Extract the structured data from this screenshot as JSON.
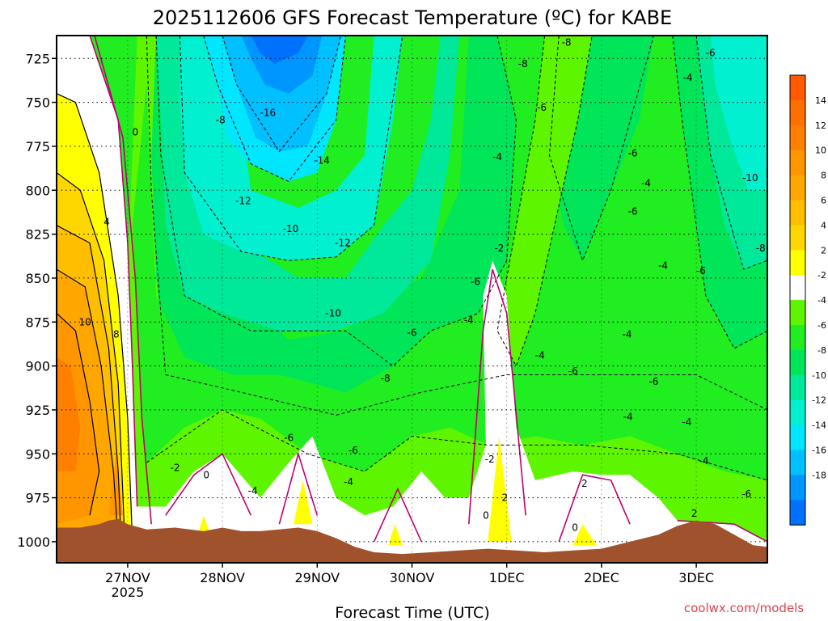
{
  "chart_data": {
    "type": "heatmap",
    "title": "2025112606 GFS Forecast Temperature (ºC) for KABE",
    "xlabel": "Forecast Time (UTC)",
    "ylabel": "",
    "x_ticks": [
      {
        "label": "27NOV",
        "sub": "2025",
        "day": 1
      },
      {
        "label": "28NOV",
        "sub": "",
        "day": 2
      },
      {
        "label": "29NOV",
        "sub": "",
        "day": 3
      },
      {
        "label": "30NOV",
        "sub": "",
        "day": 4
      },
      {
        "label": "1DEC",
        "sub": "",
        "day": 5
      },
      {
        "label": "2DEC",
        "sub": "",
        "day": 6
      },
      {
        "label": "3DEC",
        "sub": "",
        "day": 7
      }
    ],
    "xlim_days": [
      0.25,
      7.75
    ],
    "y_ticks": [
      725,
      750,
      775,
      800,
      825,
      850,
      875,
      900,
      925,
      950,
      975,
      1000
    ],
    "ylim": [
      712,
      1012
    ],
    "y_axis_inverted": true,
    "grid": "dotted",
    "colorbar": {
      "placement": "right",
      "labels": [
        "14",
        "12",
        "10",
        "8",
        "6",
        "4",
        "2",
        "-2",
        "-4",
        "-6",
        "-8",
        "-10",
        "-12",
        "-14",
        "-16",
        "-18"
      ],
      "bins": [
        {
          "lo": 16,
          "hi": 18,
          "color": "#ff5a00"
        },
        {
          "lo": 14,
          "hi": 16,
          "color": "#ff6e00"
        },
        {
          "lo": 12,
          "hi": 14,
          "color": "#ff8000"
        },
        {
          "lo": 10,
          "hi": 12,
          "color": "#ff9600"
        },
        {
          "lo": 8,
          "hi": 10,
          "color": "#ffa600"
        },
        {
          "lo": 6,
          "hi": 8,
          "color": "#ffbe00"
        },
        {
          "lo": 4,
          "hi": 6,
          "color": "#ffd700"
        },
        {
          "lo": 2,
          "hi": 4,
          "color": "#ffff00"
        },
        {
          "lo": -2,
          "hi": 2,
          "color": "#ffffff"
        },
        {
          "lo": -4,
          "hi": -2,
          "color": "#5ef500"
        },
        {
          "lo": -6,
          "hi": -4,
          "color": "#20ee20"
        },
        {
          "lo": -8,
          "hi": -6,
          "color": "#00e658"
        },
        {
          "lo": -10,
          "hi": -8,
          "color": "#00e89a"
        },
        {
          "lo": -12,
          "hi": -10,
          "color": "#00f0d0"
        },
        {
          "lo": -14,
          "hi": -12,
          "color": "#00e6ff"
        },
        {
          "lo": -16,
          "hi": -14,
          "color": "#00c0ff"
        },
        {
          "lo": -18,
          "hi": -16,
          "color": "#0096ff"
        },
        {
          "lo": -20,
          "hi": -18,
          "color": "#0070ff"
        }
      ]
    },
    "terrain_color": "#a0522d",
    "contour_labels": [
      {
        "text": "0",
        "day": 1.08,
        "p": 767
      },
      {
        "text": "4",
        "day": 0.78,
        "p": 818
      },
      {
        "text": "10",
        "day": 0.55,
        "p": 875
      },
      {
        "text": "8",
        "day": 0.88,
        "p": 882
      },
      {
        "text": "-8",
        "day": 1.98,
        "p": 760
      },
      {
        "text": "-16",
        "day": 2.48,
        "p": 756
      },
      {
        "text": "-14",
        "day": 3.05,
        "p": 783
      },
      {
        "text": "-12",
        "day": 2.22,
        "p": 806
      },
      {
        "text": "-10",
        "day": 2.72,
        "p": 822
      },
      {
        "text": "-12",
        "day": 3.27,
        "p": 830
      },
      {
        "text": "-10",
        "day": 3.17,
        "p": 870
      },
      {
        "text": "-8",
        "day": 3.72,
        "p": 907
      },
      {
        "text": "-6",
        "day": 4.0,
        "p": 881
      },
      {
        "text": "-6",
        "day": 2.7,
        "p": 941
      },
      {
        "text": "-6",
        "day": 3.38,
        "p": 948
      },
      {
        "text": "-4",
        "day": 2.32,
        "p": 971
      },
      {
        "text": "-4",
        "day": 3.33,
        "p": 966
      },
      {
        "text": "-2",
        "day": 1.5,
        "p": 958
      },
      {
        "text": "0",
        "day": 1.83,
        "p": 962
      },
      {
        "text": "-4",
        "day": 4.6,
        "p": 874
      },
      {
        "text": "-6",
        "day": 4.67,
        "p": 852
      },
      {
        "text": "-2",
        "day": 4.92,
        "p": 833
      },
      {
        "text": "-4",
        "day": 4.9,
        "p": 781
      },
      {
        "text": "-8",
        "day": 5.17,
        "p": 728
      },
      {
        "text": "-8",
        "day": 5.63,
        "p": 716
      },
      {
        "text": "-6",
        "day": 5.37,
        "p": 753
      },
      {
        "text": "-6",
        "day": 6.33,
        "p": 779
      },
      {
        "text": "-4",
        "day": 6.47,
        "p": 796
      },
      {
        "text": "-6",
        "day": 6.33,
        "p": 812
      },
      {
        "text": "-4",
        "day": 6.65,
        "p": 843
      },
      {
        "text": "-4",
        "day": 6.27,
        "p": 882
      },
      {
        "text": "-4",
        "day": 5.35,
        "p": 894
      },
      {
        "text": "-6",
        "day": 5.7,
        "p": 903
      },
      {
        "text": "-6",
        "day": 6.55,
        "p": 909
      },
      {
        "text": "-4",
        "day": 6.28,
        "p": 929
      },
      {
        "text": "-4",
        "day": 6.9,
        "p": 932
      },
      {
        "text": "-4",
        "day": 7.08,
        "p": 954
      },
      {
        "text": "-6",
        "day": 7.05,
        "p": 846
      },
      {
        "text": "-4",
        "day": 6.91,
        "p": 736
      },
      {
        "text": "-6",
        "day": 7.15,
        "p": 722
      },
      {
        "text": "-10",
        "day": 7.57,
        "p": 793
      },
      {
        "text": "-8",
        "day": 7.68,
        "p": 833
      },
      {
        "text": "-6",
        "day": 7.53,
        "p": 973
      },
      {
        "text": "-2",
        "day": 4.82,
        "p": 953
      },
      {
        "text": "0",
        "day": 4.78,
        "p": 985
      },
      {
        "text": "2",
        "day": 4.98,
        "p": 975
      },
      {
        "text": "2",
        "day": 5.82,
        "p": 967
      },
      {
        "text": "0",
        "day": 5.72,
        "p": 992
      },
      {
        "text": "2",
        "day": 6.98,
        "p": 984
      }
    ]
  },
  "footer": {
    "credit": "coolwx.com/models"
  }
}
